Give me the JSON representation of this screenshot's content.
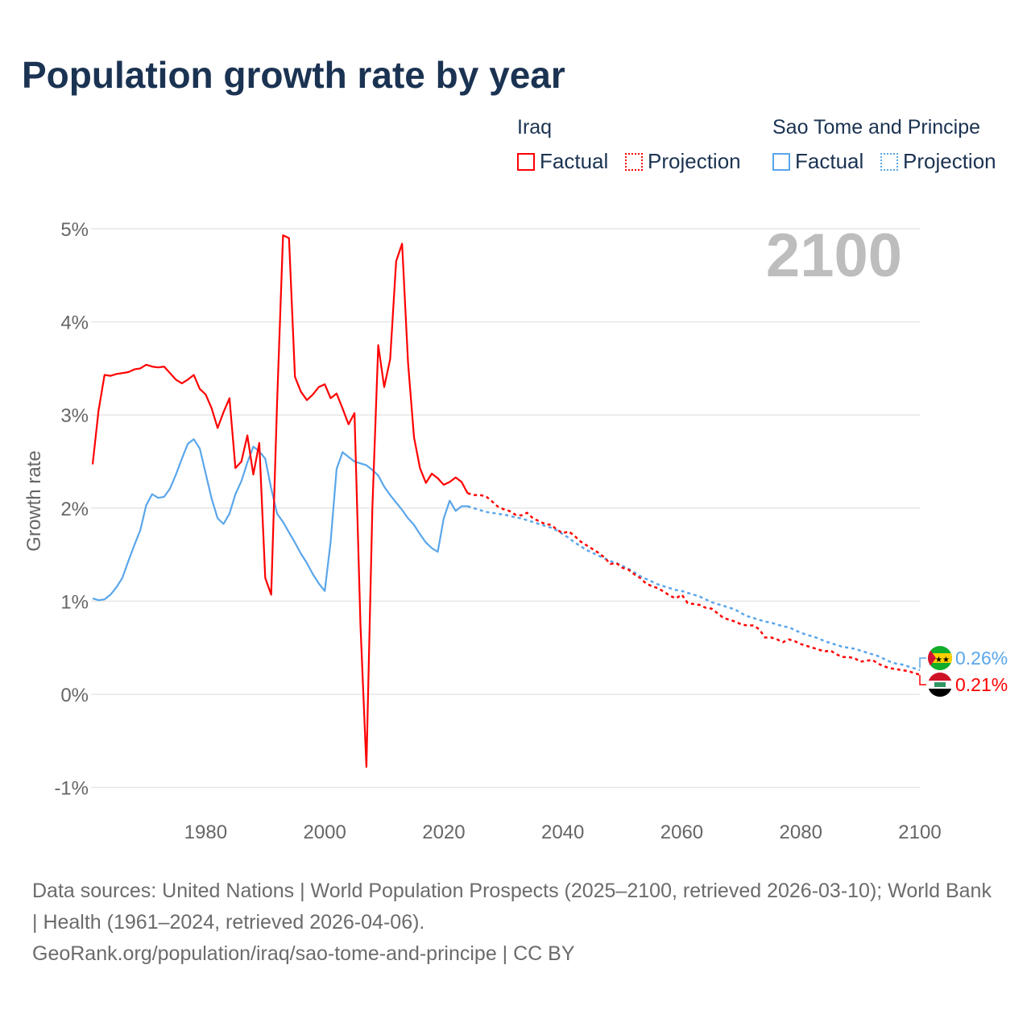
{
  "title": "Population growth rate by year",
  "legend": {
    "groups": [
      {
        "name": "Iraq",
        "factual": "Factual",
        "projection": "Projection",
        "color": "#ff0000"
      },
      {
        "name": "Sao Tome and Principe",
        "factual": "Factual",
        "projection": "Projection",
        "color": "#5aa6ea"
      }
    ]
  },
  "year_display": "2100",
  "end_labels": {
    "stp": "0.26%",
    "iraq": "0.21%"
  },
  "footer": {
    "sources": "Data sources: United Nations | World Population Prospects (2025–2100, retrieved 2026-03-10); World Bank | Health (1961–2024, retrieved 2026-04-06).",
    "credit": "GeoRank.org/population/iraq/sao-tome-and-principe | CC BY"
  },
  "chart_data": {
    "type": "line",
    "title": "Population growth rate by year",
    "xlabel": "",
    "ylabel": "Growth rate",
    "xlim": [
      1961,
      2100
    ],
    "ylim": [
      -1,
      5
    ],
    "x_ticks": [
      1980,
      2000,
      2020,
      2040,
      2060,
      2080,
      2100
    ],
    "x_tick_labels": [
      "1980",
      "2000",
      "2020",
      "2040",
      "2060",
      "2080",
      "2100"
    ],
    "y_ticks": [
      -1,
      0,
      1,
      2,
      3,
      4,
      5
    ],
    "y_tick_labels": [
      "-1%",
      "0%",
      "1%",
      "2%",
      "3%",
      "4%",
      "5%"
    ],
    "grid": true,
    "legend_position": "top-right",
    "series": [
      {
        "name": "Iraq Factual",
        "color": "#ff0000",
        "style": "solid",
        "x_start": 1961,
        "values": [
          2.47,
          3.05,
          3.43,
          3.42,
          3.44,
          3.45,
          3.46,
          3.49,
          3.5,
          3.54,
          3.52,
          3.51,
          3.52,
          3.45,
          3.38,
          3.34,
          3.38,
          3.43,
          3.28,
          3.22,
          3.07,
          2.86,
          3.03,
          3.18,
          2.43,
          2.5,
          2.78,
          2.36,
          2.7,
          1.25,
          1.07,
          3.13,
          4.93,
          4.9,
          3.41,
          3.25,
          3.16,
          3.22,
          3.3,
          3.33,
          3.18,
          3.23,
          3.07,
          2.9,
          3.02,
          0.75,
          -0.78,
          2.0,
          3.75,
          3.3,
          3.6,
          4.65,
          4.84,
          3.56,
          2.76,
          2.43,
          2.27,
          2.37,
          2.32,
          2.25,
          2.28,
          2.33,
          2.28,
          2.16
        ]
      },
      {
        "name": "Iraq Projection",
        "color": "#ff0000",
        "style": "dotted",
        "x_start": 2025,
        "values": [
          2.14,
          2.14,
          2.13,
          2.08,
          2.02,
          1.99,
          1.97,
          1.93,
          1.92,
          1.95,
          1.89,
          1.86,
          1.83,
          1.82,
          1.77,
          1.73,
          1.75,
          1.7,
          1.64,
          1.6,
          1.56,
          1.52,
          1.47,
          1.4,
          1.41,
          1.36,
          1.34,
          1.29,
          1.25,
          1.19,
          1.16,
          1.14,
          1.1,
          1.06,
          1.03,
          1.07,
          0.98,
          0.97,
          0.96,
          0.93,
          0.92,
          0.87,
          0.82,
          0.8,
          0.78,
          0.75,
          0.74,
          0.74,
          0.7,
          0.61,
          0.61,
          0.59,
          0.56,
          0.59,
          0.57,
          0.54,
          0.52,
          0.5,
          0.48,
          0.46,
          0.47,
          0.43,
          0.4,
          0.4,
          0.39,
          0.35,
          0.36,
          0.37,
          0.33,
          0.3,
          0.28,
          0.27,
          0.26,
          0.25,
          0.23,
          0.21
        ]
      },
      {
        "name": "Sao Tome and Principe Factual",
        "color": "#5aa6ea",
        "style": "solid",
        "x_start": 1961,
        "values": [
          1.03,
          1.01,
          1.02,
          1.07,
          1.15,
          1.25,
          1.43,
          1.6,
          1.76,
          2.03,
          2.15,
          2.11,
          2.12,
          2.21,
          2.36,
          2.53,
          2.69,
          2.74,
          2.64,
          2.37,
          2.1,
          1.89,
          1.83,
          1.94,
          2.15,
          2.29,
          2.49,
          2.66,
          2.61,
          2.53,
          2.21,
          1.94,
          1.85,
          1.74,
          1.63,
          1.51,
          1.41,
          1.29,
          1.19,
          1.11,
          1.64,
          2.42,
          2.6,
          2.55,
          2.5,
          2.48,
          2.46,
          2.41,
          2.35,
          2.23,
          2.14,
          2.06,
          1.98,
          1.89,
          1.82,
          1.72,
          1.63,
          1.57,
          1.53,
          1.89,
          2.08,
          1.97,
          2.02,
          2.02
        ]
      },
      {
        "name": "Sao Tome and Principe Projection",
        "color": "#5aa6ea",
        "style": "dotted",
        "x_start": 2025,
        "values": [
          2.0,
          1.98,
          1.96,
          1.95,
          1.94,
          1.93,
          1.92,
          1.9,
          1.89,
          1.87,
          1.85,
          1.83,
          1.81,
          1.79,
          1.76,
          1.72,
          1.68,
          1.63,
          1.59,
          1.55,
          1.52,
          1.49,
          1.46,
          1.43,
          1.41,
          1.38,
          1.35,
          1.31,
          1.27,
          1.24,
          1.21,
          1.18,
          1.16,
          1.14,
          1.12,
          1.11,
          1.09,
          1.07,
          1.05,
          1.02,
          0.99,
          0.97,
          0.95,
          0.93,
          0.91,
          0.87,
          0.84,
          0.82,
          0.8,
          0.78,
          0.77,
          0.75,
          0.73,
          0.72,
          0.69,
          0.66,
          0.64,
          0.62,
          0.6,
          0.57,
          0.55,
          0.53,
          0.51,
          0.5,
          0.49,
          0.47,
          0.45,
          0.43,
          0.41,
          0.38,
          0.35,
          0.33,
          0.32,
          0.3,
          0.28,
          0.26
        ]
      }
    ]
  }
}
